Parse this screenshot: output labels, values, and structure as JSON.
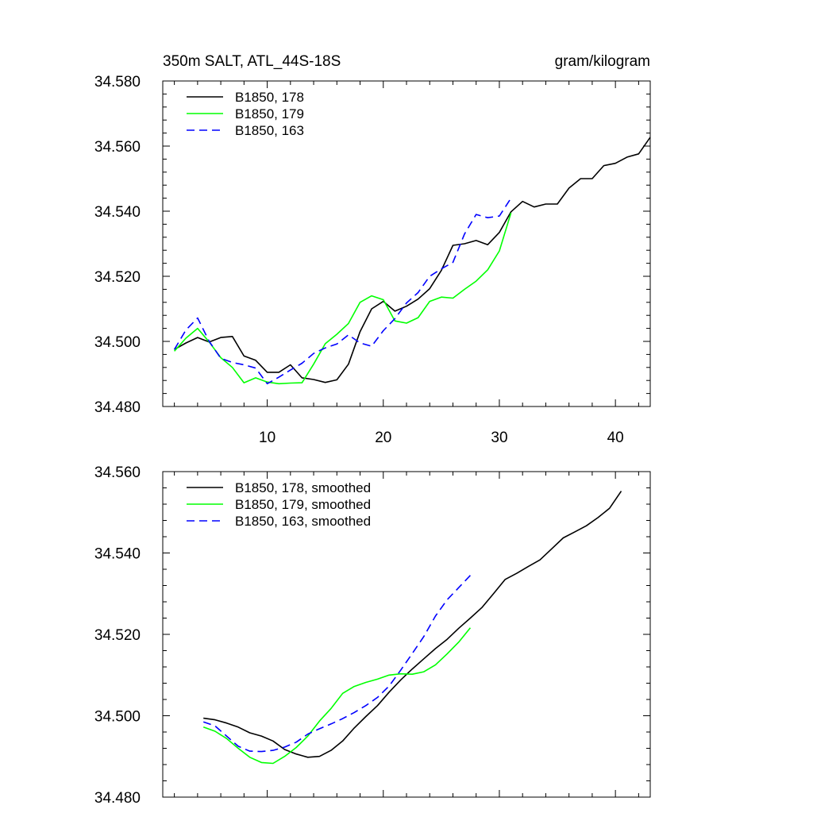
{
  "chart_data": [
    {
      "type": "line",
      "title": "350m SALT, ATL_44S-18S",
      "units": "gram/kilogram",
      "xlabel": "",
      "ylabel": "",
      "xlim": [
        1,
        43
      ],
      "ylim": [
        34.48,
        34.58
      ],
      "xticks": [
        10,
        20,
        30,
        40
      ],
      "xtick_labels": [
        "10",
        "20",
        "30",
        "40"
      ],
      "yticks": [
        34.48,
        34.5,
        34.52,
        34.54,
        34.56,
        34.58
      ],
      "ytick_labels": [
        "34.480",
        "34.500",
        "34.520",
        "34.540",
        "34.560",
        "34.580"
      ],
      "legend_position": "top-left",
      "series": [
        {
          "name": "B1850, 178",
          "color": "#000000",
          "dash": "solid",
          "x": [
            2,
            3,
            4,
            5,
            6,
            7,
            8,
            9,
            10,
            11,
            12,
            13,
            14,
            15,
            16,
            17,
            18,
            19,
            20,
            21,
            22,
            23,
            24,
            25,
            26,
            27,
            28,
            29,
            30,
            31,
            32,
            33,
            34,
            35,
            36,
            37,
            38,
            39,
            40,
            41,
            42,
            43
          ],
          "y": [
            34.4975,
            34.4995,
            34.5012,
            34.4998,
            34.5012,
            34.5015,
            34.4955,
            34.4942,
            34.4905,
            34.4905,
            34.4928,
            34.4888,
            34.4883,
            34.4874,
            34.4882,
            34.493,
            34.503,
            34.51,
            34.5123,
            34.5093,
            34.5108,
            34.513,
            34.5162,
            34.5218,
            34.5295,
            34.53,
            34.531,
            34.5297,
            34.5335,
            34.5398,
            34.543,
            34.5413,
            34.5422,
            34.5422,
            34.5471,
            34.55,
            34.55,
            34.554,
            34.5547,
            34.5566,
            34.5576,
            34.5627
          ]
        },
        {
          "name": "B1850, 179",
          "color": "#00ff00",
          "dash": "solid",
          "x": [
            2,
            3,
            4,
            5,
            6,
            7,
            8,
            9,
            10,
            11,
            12,
            13,
            14,
            15,
            16,
            17,
            18,
            19,
            20,
            21,
            22,
            23,
            24,
            25,
            26,
            27,
            28,
            29,
            30,
            31
          ],
          "y": [
            34.497,
            34.501,
            34.504,
            34.4998,
            34.495,
            34.492,
            34.4873,
            34.4888,
            34.4875,
            34.487,
            34.4872,
            34.4873,
            34.493,
            34.4993,
            34.5022,
            34.5055,
            34.512,
            34.514,
            34.5128,
            34.5063,
            34.5056,
            34.5073,
            34.5123,
            34.5136,
            34.5133,
            34.516,
            34.5185,
            34.522,
            34.5278,
            34.5395
          ]
        },
        {
          "name": "B1850, 163",
          "color": "#0000ff",
          "dash": "dashed",
          "x": [
            2,
            3,
            4,
            5,
            6,
            7,
            8,
            9,
            10,
            11,
            12,
            13,
            14,
            15,
            16,
            17,
            18,
            19,
            20,
            21,
            22,
            23,
            24,
            25,
            26,
            27,
            28,
            29,
            30,
            31
          ],
          "y": [
            34.4975,
            34.5035,
            34.5072,
            34.5,
            34.4948,
            34.4935,
            34.4928,
            34.4918,
            34.487,
            34.489,
            34.4912,
            34.4933,
            34.4963,
            34.498,
            34.4992,
            34.502,
            34.4995,
            34.4985,
            34.5033,
            34.507,
            34.5118,
            34.515,
            34.52,
            34.5223,
            34.5243,
            34.533,
            34.539,
            34.538,
            34.5385,
            34.544
          ]
        }
      ]
    },
    {
      "type": "line",
      "title": "",
      "xlabel": "",
      "ylabel": "",
      "xlim": [
        1,
        43
      ],
      "ylim": [
        34.48,
        34.56
      ],
      "xticks": [
        10,
        20,
        30,
        40
      ],
      "xtick_labels": [],
      "yticks": [
        34.48,
        34.5,
        34.52,
        34.54,
        34.56
      ],
      "ytick_labels": [
        "34.480",
        "34.500",
        "34.520",
        "34.540",
        "34.560"
      ],
      "legend_position": "top-left",
      "series": [
        {
          "name": "B1850, 178, smoothed",
          "color": "#000000",
          "dash": "solid",
          "x": [
            4.5,
            5.5,
            6.5,
            7.5,
            8.5,
            9.5,
            10.5,
            11.5,
            12.5,
            13.5,
            14.5,
            15.5,
            16.5,
            17.5,
            18.5,
            19.5,
            20.5,
            21.5,
            22.5,
            23.5,
            24.5,
            25.5,
            26.5,
            27.5,
            28.5,
            29.5,
            30.5,
            31.5,
            32.5,
            33.5,
            34.5,
            35.5,
            36.5,
            37.5,
            38.5,
            39.5,
            40.5
          ],
          "y": [
            34.4994,
            34.499,
            34.4982,
            34.4972,
            34.4958,
            34.495,
            34.4938,
            34.4917,
            34.4906,
            34.4898,
            34.49,
            34.4915,
            34.4938,
            34.497,
            34.4998,
            34.5025,
            34.5058,
            34.5088,
            34.5115,
            34.514,
            34.5165,
            34.5188,
            34.5215,
            34.524,
            34.5266,
            34.53,
            34.5335,
            34.535,
            34.5367,
            34.5383,
            34.541,
            34.5437,
            34.5452,
            34.5467,
            34.5487,
            34.551,
            34.5552
          ]
        },
        {
          "name": "B1850, 179, smoothed",
          "color": "#00ff00",
          "dash": "solid",
          "x": [
            4.5,
            5.5,
            6.5,
            7.5,
            8.5,
            9.5,
            10.5,
            11.5,
            12.5,
            13.5,
            14.5,
            15.5,
            16.5,
            17.5,
            18.5,
            19.5,
            20.5,
            21.5,
            22.5,
            23.5,
            24.5,
            25.5,
            26.5,
            27.5
          ],
          "y": [
            34.4972,
            34.4962,
            34.4944,
            34.492,
            34.4898,
            34.4885,
            34.4883,
            34.49,
            34.4922,
            34.495,
            34.4987,
            34.5018,
            34.5055,
            34.5072,
            34.5082,
            34.509,
            34.51,
            34.5103,
            34.5102,
            34.5108,
            34.5125,
            34.5152,
            34.5181,
            34.5216
          ]
        },
        {
          "name": "B1850, 163, smoothed",
          "color": "#0000ff",
          "dash": "dashed",
          "x": [
            4.5,
            5.5,
            6.5,
            7.5,
            8.5,
            9.5,
            10.5,
            11.5,
            12.5,
            13.5,
            14.5,
            15.5,
            16.5,
            17.5,
            18.5,
            19.5,
            20.5,
            21.5,
            22.5,
            23.5,
            24.5,
            25.5,
            26.5,
            27.5
          ],
          "y": [
            34.4985,
            34.4975,
            34.495,
            34.4925,
            34.4913,
            34.4912,
            34.4915,
            34.4923,
            34.4935,
            34.4955,
            34.4968,
            34.498,
            34.4993,
            34.5008,
            34.5025,
            34.5045,
            34.5073,
            34.5112,
            34.5153,
            34.5195,
            34.5245,
            34.5285,
            34.5315,
            34.5345
          ]
        }
      ]
    }
  ]
}
